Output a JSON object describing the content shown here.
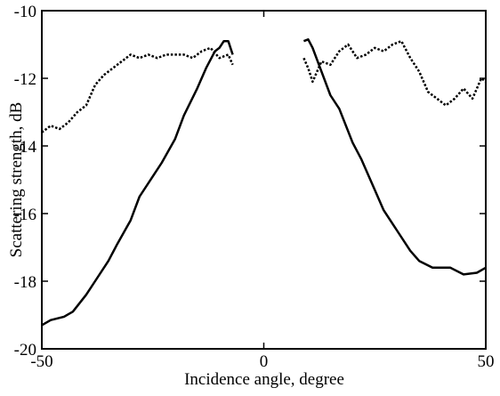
{
  "chart_data": {
    "type": "line",
    "xlabel": "Incidence angle, degree",
    "ylabel": "Scattering strength, dB",
    "xlim": [
      -50,
      50
    ],
    "ylim": [
      -20,
      -10
    ],
    "xticks": [
      -50,
      0,
      50
    ],
    "yticks": [
      -20,
      -18,
      -16,
      -14,
      -12,
      -10
    ],
    "series": [
      {
        "color": "#000000",
        "style": "solid",
        "x": [
          -50,
          -48,
          -45,
          -43,
          -40,
          -38,
          -35,
          -33,
          -30,
          -28,
          -25,
          -23,
          -20,
          -18,
          -15,
          -13,
          -11,
          -10,
          -9,
          -8,
          -7,
          null,
          9,
          10,
          11,
          13,
          15,
          17,
          20,
          22,
          25,
          27,
          30,
          33,
          35,
          38,
          40,
          42,
          45,
          48,
          50
        ],
        "values": [
          -19.3,
          -19.15,
          -19.05,
          -18.9,
          -18.4,
          -18.0,
          -17.4,
          -16.9,
          -16.2,
          -15.5,
          -14.9,
          -14.5,
          -13.8,
          -13.1,
          -12.3,
          -11.7,
          -11.2,
          -11.1,
          -10.9,
          -10.9,
          -11.3,
          null,
          -10.9,
          -10.85,
          -11.1,
          -11.8,
          -12.5,
          -12.9,
          -13.9,
          -14.4,
          -15.3,
          -15.9,
          -16.5,
          -17.1,
          -17.4,
          -17.6,
          -17.6,
          -17.6,
          -17.8,
          -17.75,
          -17.6
        ]
      },
      {
        "color": "#000000",
        "style": "dotted",
        "x": [
          -50,
          -48,
          -46,
          -44,
          -42,
          -40,
          -38,
          -36,
          -34,
          -32,
          -30,
          -28,
          -26,
          -24,
          -22,
          -20,
          -18,
          -16,
          -14,
          -12,
          -10,
          -8,
          -7,
          null,
          9,
          10,
          11,
          12,
          13,
          15,
          17,
          19,
          21,
          23,
          25,
          27,
          29,
          31,
          33,
          35,
          37,
          39,
          41,
          43,
          45,
          47,
          49,
          50
        ],
        "values": [
          -13.6,
          -13.4,
          -13.5,
          -13.3,
          -13.0,
          -12.8,
          -12.2,
          -11.9,
          -11.7,
          -11.5,
          -11.3,
          -11.4,
          -11.3,
          -11.4,
          -11.3,
          -11.3,
          -11.3,
          -11.4,
          -11.2,
          -11.1,
          -11.4,
          -11.3,
          -11.6,
          null,
          -11.4,
          -11.7,
          -12.1,
          -11.8,
          -11.5,
          -11.6,
          -11.2,
          -11.0,
          -11.4,
          -11.3,
          -11.1,
          -11.2,
          -11.0,
          -10.9,
          -11.4,
          -11.8,
          -12.4,
          -12.6,
          -12.8,
          -12.6,
          -12.3,
          -12.6,
          -12.0,
          -12.1
        ]
      }
    ]
  }
}
